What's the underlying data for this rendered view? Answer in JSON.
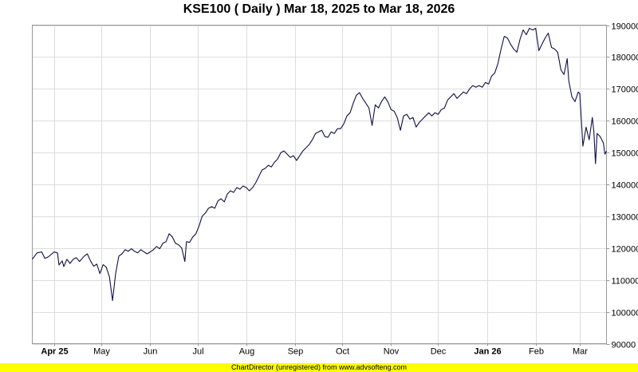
{
  "chart_data": {
    "type": "line",
    "title": "KSE100 ( Daily ) Mar 18, 2025 to Mar 18, 2026",
    "xlabel": "",
    "ylabel": "",
    "ylim": [
      90000,
      190000
    ],
    "xlim": [
      "2025-03-18",
      "2026-03-18"
    ],
    "yticks": [
      90000,
      100000,
      110000,
      120000,
      130000,
      140000,
      150000,
      160000,
      170000,
      180000,
      190000
    ],
    "grid": true,
    "legend": "none",
    "line_color": "#101040",
    "x_ticks": [
      {
        "label": "Apr 25",
        "date": "2025-04-01",
        "bold": true
      },
      {
        "label": "May",
        "date": "2025-05-01",
        "bold": false
      },
      {
        "label": "Jun",
        "date": "2025-06-01",
        "bold": false
      },
      {
        "label": "Jul",
        "date": "2025-07-01",
        "bold": false
      },
      {
        "label": "Aug",
        "date": "2025-08-01",
        "bold": false
      },
      {
        "label": "Sep",
        "date": "2025-09-01",
        "bold": false
      },
      {
        "label": "Oct",
        "date": "2025-10-01",
        "bold": false
      },
      {
        "label": "Nov",
        "date": "2025-11-01",
        "bold": false
      },
      {
        "label": "Dec",
        "date": "2025-12-01",
        "bold": false
      },
      {
        "label": "Jan 26",
        "date": "2026-01-01",
        "bold": true
      },
      {
        "label": "Feb",
        "date": "2026-02-01",
        "bold": false
      },
      {
        "label": "Mar",
        "date": "2026-03-01",
        "bold": false
      }
    ],
    "series": [
      {
        "name": "",
        "points": [
          [
            "2025-03-18",
            116500
          ],
          [
            "2025-03-21",
            118500
          ],
          [
            "2025-03-24",
            118800
          ],
          [
            "2025-03-26",
            116800
          ],
          [
            "2025-03-28",
            117200
          ],
          [
            "2025-04-01",
            118800
          ],
          [
            "2025-04-03",
            118500
          ],
          [
            "2025-04-04",
            114700
          ],
          [
            "2025-04-06",
            116000
          ],
          [
            "2025-04-07",
            114200
          ],
          [
            "2025-04-09",
            116500
          ],
          [
            "2025-04-11",
            115200
          ],
          [
            "2025-04-13",
            116500
          ],
          [
            "2025-04-15",
            117000
          ],
          [
            "2025-04-17",
            115800
          ],
          [
            "2025-04-20",
            117500
          ],
          [
            "2025-04-22",
            118200
          ],
          [
            "2025-04-24",
            116000
          ],
          [
            "2025-04-26",
            114300
          ],
          [
            "2025-04-28",
            115000
          ],
          [
            "2025-04-30",
            112000
          ],
          [
            "2025-05-02",
            114800
          ],
          [
            "2025-05-04",
            114000
          ],
          [
            "2025-05-06",
            111000
          ],
          [
            "2025-05-08",
            103500
          ],
          [
            "2025-05-10",
            112000
          ],
          [
            "2025-05-12",
            117500
          ],
          [
            "2025-05-14",
            118200
          ],
          [
            "2025-05-16",
            119500
          ],
          [
            "2025-05-18",
            119000
          ],
          [
            "2025-05-20",
            119800
          ],
          [
            "2025-05-22",
            119000
          ],
          [
            "2025-05-24",
            118500
          ],
          [
            "2025-05-26",
            119500
          ],
          [
            "2025-05-28",
            118800
          ],
          [
            "2025-05-30",
            118200
          ],
          [
            "2025-06-01",
            118800
          ],
          [
            "2025-06-03",
            119500
          ],
          [
            "2025-06-05",
            120500
          ],
          [
            "2025-06-07",
            119800
          ],
          [
            "2025-06-09",
            121500
          ],
          [
            "2025-06-11",
            122000
          ],
          [
            "2025-06-13",
            124500
          ],
          [
            "2025-06-15",
            123500
          ],
          [
            "2025-06-17",
            121500
          ],
          [
            "2025-06-19",
            121000
          ],
          [
            "2025-06-21",
            120000
          ],
          [
            "2025-06-23",
            115800
          ],
          [
            "2025-06-24",
            122000
          ],
          [
            "2025-06-26",
            121800
          ],
          [
            "2025-06-28",
            123500
          ],
          [
            "2025-06-30",
            124500
          ],
          [
            "2025-07-02",
            127000
          ],
          [
            "2025-07-04",
            130000
          ],
          [
            "2025-07-06",
            131000
          ],
          [
            "2025-07-08",
            132500
          ],
          [
            "2025-07-10",
            133000
          ],
          [
            "2025-07-12",
            132500
          ],
          [
            "2025-07-14",
            134800
          ],
          [
            "2025-07-16",
            135500
          ],
          [
            "2025-07-18",
            134500
          ],
          [
            "2025-07-20",
            137000
          ],
          [
            "2025-07-22",
            138000
          ],
          [
            "2025-07-24",
            137500
          ],
          [
            "2025-07-26",
            139000
          ],
          [
            "2025-07-28",
            138500
          ],
          [
            "2025-07-30",
            139500
          ],
          [
            "2025-08-01",
            139000
          ],
          [
            "2025-08-03",
            138000
          ],
          [
            "2025-08-05",
            139000
          ],
          [
            "2025-08-07",
            140500
          ],
          [
            "2025-08-09",
            142500
          ],
          [
            "2025-08-11",
            144500
          ],
          [
            "2025-08-13",
            145000
          ],
          [
            "2025-08-15",
            146000
          ],
          [
            "2025-08-17",
            145500
          ],
          [
            "2025-08-19",
            147000
          ],
          [
            "2025-08-21",
            148000
          ],
          [
            "2025-08-23",
            150000
          ],
          [
            "2025-08-25",
            150500
          ],
          [
            "2025-08-27",
            149500
          ],
          [
            "2025-08-29",
            148500
          ],
          [
            "2025-08-31",
            149000
          ],
          [
            "2025-09-02",
            147500
          ],
          [
            "2025-09-04",
            149000
          ],
          [
            "2025-09-06",
            150500
          ],
          [
            "2025-09-08",
            151500
          ],
          [
            "2025-09-10",
            152500
          ],
          [
            "2025-09-12",
            154000
          ],
          [
            "2025-09-14",
            156000
          ],
          [
            "2025-09-16",
            156500
          ],
          [
            "2025-09-18",
            157000
          ],
          [
            "2025-09-20",
            155000
          ],
          [
            "2025-09-22",
            154800
          ],
          [
            "2025-09-24",
            156500
          ],
          [
            "2025-09-26",
            156000
          ],
          [
            "2025-09-28",
            157500
          ],
          [
            "2025-09-30",
            157500
          ],
          [
            "2025-10-02",
            159000
          ],
          [
            "2025-10-04",
            161500
          ],
          [
            "2025-10-06",
            162500
          ],
          [
            "2025-10-08",
            165500
          ],
          [
            "2025-10-10",
            168000
          ],
          [
            "2025-10-12",
            168800
          ],
          [
            "2025-10-14",
            167000
          ],
          [
            "2025-10-16",
            165500
          ],
          [
            "2025-10-18",
            164000
          ],
          [
            "2025-10-20",
            158500
          ],
          [
            "2025-10-22",
            165000
          ],
          [
            "2025-10-24",
            164000
          ],
          [
            "2025-10-26",
            166000
          ],
          [
            "2025-10-28",
            167500
          ],
          [
            "2025-10-30",
            166000
          ],
          [
            "2025-11-01",
            163500
          ],
          [
            "2025-11-03",
            163000
          ],
          [
            "2025-11-05",
            161000
          ],
          [
            "2025-11-07",
            157000
          ],
          [
            "2025-11-09",
            161500
          ],
          [
            "2025-11-11",
            162000
          ],
          [
            "2025-11-13",
            160500
          ],
          [
            "2025-11-15",
            161000
          ],
          [
            "2025-11-17",
            158000
          ],
          [
            "2025-11-19",
            159500
          ],
          [
            "2025-11-21",
            160500
          ],
          [
            "2025-11-23",
            161500
          ],
          [
            "2025-11-25",
            162500
          ],
          [
            "2025-11-27",
            161500
          ],
          [
            "2025-11-29",
            162500
          ],
          [
            "2025-12-01",
            162000
          ],
          [
            "2025-12-03",
            163500
          ],
          [
            "2025-12-05",
            164000
          ],
          [
            "2025-12-07",
            166500
          ],
          [
            "2025-12-09",
            167500
          ],
          [
            "2025-12-11",
            168500
          ],
          [
            "2025-12-13",
            167000
          ],
          [
            "2025-12-15",
            168000
          ],
          [
            "2025-12-17",
            169000
          ],
          [
            "2025-12-19",
            168500
          ],
          [
            "2025-12-21",
            170000
          ],
          [
            "2025-12-23",
            171000
          ],
          [
            "2025-12-25",
            170500
          ],
          [
            "2025-12-27",
            171000
          ],
          [
            "2025-12-29",
            170500
          ],
          [
            "2025-12-31",
            172000
          ],
          [
            "2026-01-02",
            171500
          ],
          [
            "2026-01-04",
            174000
          ],
          [
            "2026-01-06",
            175000
          ],
          [
            "2026-01-08",
            178000
          ],
          [
            "2026-01-10",
            182500
          ],
          [
            "2026-01-12",
            186500
          ],
          [
            "2026-01-14",
            186000
          ],
          [
            "2026-01-16",
            184000
          ],
          [
            "2026-01-18",
            182500
          ],
          [
            "2026-01-20",
            181500
          ],
          [
            "2026-01-22",
            185500
          ],
          [
            "2026-01-24",
            188500
          ],
          [
            "2026-01-26",
            187000
          ],
          [
            "2026-01-28",
            189000
          ],
          [
            "2026-01-30",
            188500
          ],
          [
            "2026-02-01",
            189000
          ],
          [
            "2026-02-03",
            182000
          ],
          [
            "2026-02-05",
            184000
          ],
          [
            "2026-02-07",
            186000
          ],
          [
            "2026-02-09",
            187500
          ],
          [
            "2026-02-11",
            183000
          ],
          [
            "2026-02-13",
            182500
          ],
          [
            "2026-02-15",
            181500
          ],
          [
            "2026-02-17",
            176000
          ],
          [
            "2026-02-19",
            174500
          ],
          [
            "2026-02-21",
            179500
          ],
          [
            "2026-02-22",
            172500
          ],
          [
            "2026-02-24",
            167500
          ],
          [
            "2026-02-26",
            166000
          ],
          [
            "2026-02-28",
            169000
          ],
          [
            "2026-03-01",
            168500
          ],
          [
            "2026-03-03",
            152000
          ],
          [
            "2026-03-05",
            158000
          ],
          [
            "2026-03-07",
            154000
          ],
          [
            "2026-03-09",
            161000
          ],
          [
            "2026-03-10",
            156500
          ],
          [
            "2026-03-11",
            146500
          ],
          [
            "2026-03-12",
            156000
          ],
          [
            "2026-03-14",
            155000
          ],
          [
            "2026-03-16",
            153000
          ],
          [
            "2026-03-17",
            149500
          ],
          [
            "2026-03-18",
            150500
          ]
        ]
      }
    ]
  },
  "footer": {
    "text": "ChartDirector (unregistered) from www.advsofteng.com"
  }
}
